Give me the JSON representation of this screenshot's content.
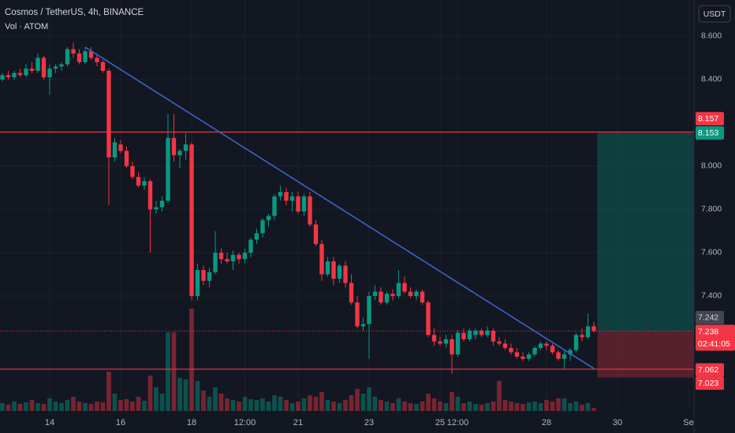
{
  "chart_data": {
    "type": "candlestick",
    "title": "Cosmos / TetherUS, 4h, BINANCE",
    "subtitle": "Vol · ATOM",
    "currency": "USDT",
    "up_color": "#089981",
    "down_color": "#f23645",
    "grid": true,
    "open": [
      8.4,
      8.42,
      8.41,
      8.43,
      8.42,
      8.45,
      8.44,
      8.5,
      8.41,
      8.45,
      8.46,
      8.47,
      8.54,
      8.52,
      8.48,
      8.53,
      8.5,
      8.48,
      8.44,
      8.04,
      8.1,
      8.07,
      8.0,
      7.95,
      7.91,
      7.93,
      7.8,
      7.81,
      7.84,
      8.13,
      8.05,
      8.07,
      8.1,
      7.4,
      7.52,
      7.47,
      7.51,
      7.6,
      7.57,
      7.56,
      7.59,
      7.57,
      7.6,
      7.66,
      7.69,
      7.75,
      7.77,
      7.86,
      7.88,
      7.84,
      7.86,
      7.79,
      7.86,
      7.73,
      7.64,
      7.5,
      7.56,
      7.48,
      7.54,
      7.46,
      7.37,
      7.26,
      7.27,
      7.4,
      7.42,
      7.37,
      7.41,
      7.4,
      7.46,
      7.42,
      7.4,
      7.42,
      7.37,
      7.22,
      7.19,
      7.18,
      7.2,
      7.13,
      7.23,
      7.2,
      7.22,
      7.24,
      7.22,
      7.24,
      7.19,
      7.18,
      7.16,
      7.14,
      7.12,
      7.11,
      7.13,
      7.16,
      7.18,
      7.17,
      7.14,
      7.11,
      7.13,
      7.15,
      7.22,
      7.21,
      7.26
    ],
    "high": [
      8.43,
      8.44,
      8.44,
      8.45,
      8.47,
      8.48,
      8.52,
      8.51,
      8.47,
      8.47,
      8.48,
      8.55,
      8.57,
      8.54,
      8.55,
      8.55,
      8.52,
      8.49,
      8.45,
      8.13,
      8.12,
      8.09,
      8.02,
      7.97,
      7.95,
      7.94,
      7.84,
      7.86,
      8.24,
      8.24,
      8.08,
      8.15,
      8.11,
      7.55,
      7.54,
      7.53,
      7.7,
      7.62,
      7.6,
      7.61,
      7.6,
      7.62,
      7.67,
      7.71,
      7.76,
      7.78,
      7.87,
      7.91,
      7.9,
      7.88,
      7.88,
      7.87,
      7.88,
      7.75,
      7.66,
      7.58,
      7.58,
      7.55,
      7.56,
      7.5,
      7.4,
      7.3,
      7.42,
      7.45,
      7.44,
      7.42,
      7.43,
      7.52,
      7.49,
      7.44,
      7.43,
      7.43,
      7.38,
      7.25,
      7.21,
      7.22,
      7.22,
      7.24,
      7.25,
      7.25,
      7.25,
      7.25,
      7.26,
      7.25,
      7.21,
      7.2,
      7.18,
      7.16,
      7.14,
      7.14,
      7.17,
      7.19,
      7.19,
      7.18,
      7.15,
      7.15,
      7.16,
      7.23,
      7.25,
      7.32,
      7.28
    ],
    "low": [
      8.39,
      8.4,
      8.4,
      8.41,
      8.41,
      8.43,
      8.43,
      8.4,
      8.33,
      8.43,
      8.44,
      8.46,
      8.5,
      8.47,
      8.47,
      8.49,
      8.46,
      8.43,
      7.82,
      8.02,
      8.06,
      7.99,
      7.94,
      7.9,
      7.89,
      7.6,
      7.78,
      7.79,
      7.83,
      8.02,
      7.99,
      8.03,
      7.38,
      7.38,
      7.45,
      7.44,
      7.5,
      7.55,
      7.55,
      7.52,
      7.55,
      7.55,
      7.58,
      7.64,
      7.67,
      7.72,
      7.75,
      7.84,
      7.82,
      7.79,
      7.78,
      7.77,
      7.72,
      7.63,
      7.47,
      7.49,
      7.45,
      7.46,
      7.44,
      7.36,
      7.25,
      7.24,
      7.11,
      7.38,
      7.36,
      7.36,
      7.38,
      7.39,
      7.41,
      7.39,
      7.38,
      7.36,
      7.21,
      7.17,
      7.17,
      7.16,
      7.04,
      7.12,
      7.19,
      7.19,
      7.2,
      7.21,
      7.21,
      7.17,
      7.17,
      7.15,
      7.13,
      7.11,
      7.1,
      7.1,
      7.12,
      7.15,
      7.15,
      7.13,
      7.1,
      7.06,
      7.1,
      7.14,
      7.19,
      7.2,
      7.23
    ],
    "close": [
      8.42,
      8.41,
      8.43,
      8.42,
      8.45,
      8.44,
      8.5,
      8.41,
      8.45,
      8.46,
      8.47,
      8.54,
      8.52,
      8.48,
      8.53,
      8.5,
      8.48,
      8.44,
      8.04,
      8.11,
      8.07,
      8.0,
      7.95,
      7.91,
      7.93,
      7.8,
      7.81,
      7.84,
      8.13,
      8.05,
      8.07,
      8.1,
      7.4,
      7.52,
      7.47,
      7.51,
      7.6,
      7.57,
      7.56,
      7.59,
      7.57,
      7.6,
      7.66,
      7.69,
      7.75,
      7.77,
      7.86,
      7.88,
      7.84,
      7.86,
      7.79,
      7.86,
      7.73,
      7.64,
      7.5,
      7.56,
      7.48,
      7.54,
      7.46,
      7.37,
      7.26,
      7.27,
      7.4,
      7.42,
      7.37,
      7.41,
      7.4,
      7.46,
      7.42,
      7.4,
      7.42,
      7.37,
      7.22,
      7.19,
      7.18,
      7.2,
      7.13,
      7.23,
      7.2,
      7.24,
      7.24,
      7.22,
      7.24,
      7.19,
      7.18,
      7.16,
      7.14,
      7.12,
      7.11,
      7.13,
      7.16,
      7.18,
      7.17,
      7.14,
      7.11,
      7.13,
      7.15,
      7.22,
      7.21,
      7.26,
      7.238
    ],
    "volume": [
      10,
      8,
      12,
      9,
      11,
      14,
      10,
      9,
      16,
      12,
      10,
      14,
      18,
      12,
      10,
      9,
      12,
      11,
      50,
      22,
      14,
      15,
      12,
      18,
      13,
      45,
      30,
      22,
      100,
      100,
      42,
      40,
      130,
      38,
      26,
      18,
      30,
      22,
      16,
      14,
      12,
      18,
      15,
      14,
      16,
      12,
      20,
      18,
      14,
      10,
      12,
      16,
      20,
      18,
      24,
      14,
      12,
      10,
      14,
      20,
      28,
      22,
      30,
      18,
      14,
      12,
      10,
      16,
      12,
      10,
      9,
      12,
      22,
      16,
      12,
      10,
      24,
      18,
      10,
      12,
      9,
      8,
      10,
      12,
      38,
      14,
      12,
      10,
      9,
      11,
      12,
      10,
      14,
      12,
      16,
      16,
      10,
      12,
      8,
      10,
      4
    ],
    "xlim": [
      -0.4,
      116.93
    ],
    "xticks": [
      {
        "value": 8,
        "label": "14"
      },
      {
        "value": 20,
        "label": "16"
      },
      {
        "value": 32,
        "label": "18"
      },
      {
        "value": 41,
        "label": "12:00"
      },
      {
        "value": 50,
        "label": "21"
      },
      {
        "value": 62,
        "label": "23"
      },
      {
        "value": 74,
        "label": "25"
      },
      {
        "value": 77,
        "label": "12:00"
      },
      {
        "value": 92,
        "label": "28"
      },
      {
        "value": 104,
        "label": "30"
      },
      {
        "value": 116,
        "label": "Se"
      }
    ],
    "ylim": [
      6.869,
      8.767
    ],
    "yticks": [
      {
        "value": 8.6,
        "label": "8.600"
      },
      {
        "value": 8.4,
        "label": "8.400"
      },
      {
        "value": 8.0,
        "label": "8.000"
      },
      {
        "value": 7.8,
        "label": "7.800"
      },
      {
        "value": 7.6,
        "label": "7.600"
      },
      {
        "value": 7.4,
        "label": "7.400"
      }
    ],
    "hlines": [
      8.157,
      7.062
    ],
    "hline_color": "#f23645",
    "trendline": {
      "x": [
        14,
        100
      ],
      "y": [
        8.549,
        7.065
      ],
      "color": "#3d63c9"
    },
    "position": {
      "target": 8.153,
      "entry": 7.238,
      "stop": 7.023
    },
    "marker_price": 7.242,
    "countdown": "02:41:05"
  }
}
